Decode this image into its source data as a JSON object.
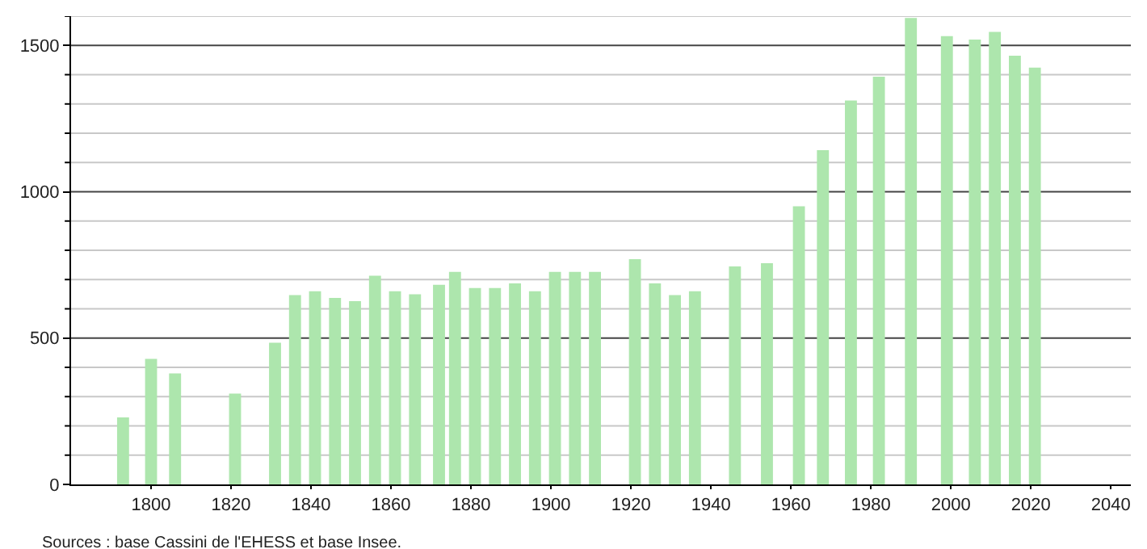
{
  "chart_data": {
    "type": "bar",
    "x": [
      1793,
      1800,
      1806,
      1821,
      1831,
      1836,
      1841,
      1846,
      1851,
      1856,
      1861,
      1866,
      1872,
      1876,
      1881,
      1886,
      1891,
      1896,
      1901,
      1906,
      1911,
      1921,
      1926,
      1931,
      1936,
      1946,
      1954,
      1962,
      1968,
      1975,
      1982,
      1990,
      1999,
      2006,
      2011,
      2016,
      2021
    ],
    "values": [
      229,
      429,
      379,
      310,
      484,
      647,
      660,
      637,
      626,
      713,
      660,
      650,
      682,
      726,
      671,
      671,
      687,
      660,
      726,
      726,
      726,
      770,
      687,
      647,
      660,
      745,
      756,
      950,
      1142,
      1312,
      1393,
      1594,
      1532,
      1520,
      1546,
      1465,
      1424
    ],
    "color": "#ade6ad",
    "xlim": [
      1780,
      2045
    ],
    "xticks": [
      1800,
      1820,
      1840,
      1860,
      1880,
      1900,
      1920,
      1940,
      1960,
      1980,
      2000,
      2020,
      2040
    ],
    "ylim": [
      0,
      1600
    ],
    "yticks": [
      0,
      {
        "value": 100,
        "label": null
      },
      {
        "value": 200,
        "label": null
      },
      {
        "value": 300,
        "label": null
      },
      {
        "value": 400,
        "label": null
      },
      500,
      {
        "value": 600,
        "label": null
      },
      {
        "value": 700,
        "label": null
      },
      {
        "value": 800,
        "label": null
      },
      {
        "value": 900,
        "label": null
      },
      1000,
      {
        "value": 1100,
        "label": null
      },
      {
        "value": 1200,
        "label": null
      },
      {
        "value": 1300,
        "label": null
      },
      {
        "value": 1400,
        "label": null
      },
      1500,
      {
        "value": 1600,
        "label": null
      }
    ],
    "grid": "y",
    "annotations": [
      "Sources : base Cassini de l'EHESS et base Insee."
    ]
  }
}
